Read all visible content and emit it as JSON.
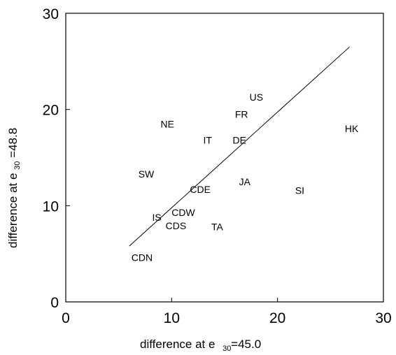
{
  "chart_data": {
    "type": "scatter",
    "title": "",
    "xlim": [
      0,
      30
    ],
    "ylim": [
      0,
      30
    ],
    "xticks": [
      0,
      10,
      20,
      30
    ],
    "yticks": [
      0,
      10,
      20,
      30
    ],
    "xlabel": {
      "prefix": "difference at e",
      "subscript": "30",
      "suffix": "=45.0"
    },
    "ylabel": {
      "prefix": "difference at e",
      "subscript": "30",
      "suffix": "=48.8"
    },
    "points": [
      {
        "label": "US",
        "x": 18.0,
        "y": 21.3
      },
      {
        "label": "FR",
        "x": 16.6,
        "y": 19.5
      },
      {
        "label": "NE",
        "x": 9.6,
        "y": 18.5
      },
      {
        "label": "HK",
        "x": 27.0,
        "y": 18.0
      },
      {
        "label": "IT",
        "x": 13.4,
        "y": 16.8
      },
      {
        "label": "DE",
        "x": 16.4,
        "y": 16.8
      },
      {
        "label": "SW",
        "x": 7.6,
        "y": 13.3
      },
      {
        "label": "JA",
        "x": 16.9,
        "y": 12.5
      },
      {
        "label": "CDE",
        "x": 12.7,
        "y": 11.7
      },
      {
        "label": "SI",
        "x": 22.1,
        "y": 11.6
      },
      {
        "label": "CDW",
        "x": 11.1,
        "y": 9.3
      },
      {
        "label": "IS",
        "x": 8.6,
        "y": 8.8
      },
      {
        "label": "CDS",
        "x": 10.4,
        "y": 7.9
      },
      {
        "label": "TA",
        "x": 14.3,
        "y": 7.8
      },
      {
        "label": "CDN",
        "x": 7.2,
        "y": 4.6
      }
    ],
    "fit_line": {
      "x": [
        6.0,
        26.8
      ],
      "y": [
        5.8,
        26.5
      ]
    },
    "grid": false
  }
}
